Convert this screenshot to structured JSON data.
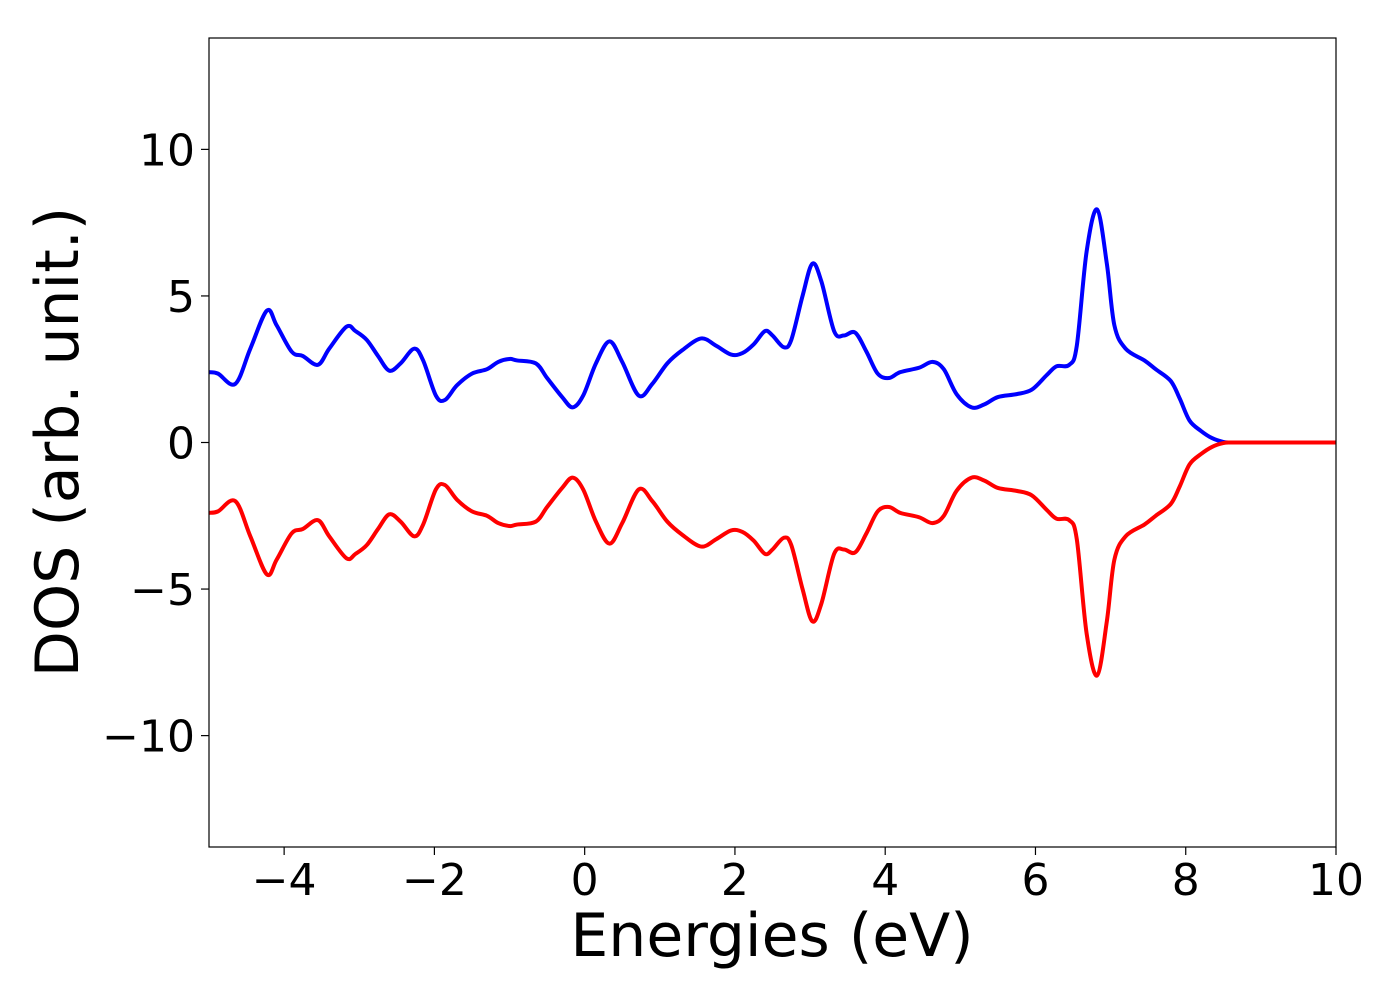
{
  "chart_data": {
    "type": "line",
    "title": "",
    "xlabel": "Energies (eV)",
    "ylabel": "DOS (arb. unit.)",
    "xlim": [
      -5,
      10
    ],
    "ylim": [
      -13.8,
      13.8
    ],
    "xticks": [
      -4,
      -2,
      0,
      2,
      4,
      6,
      8,
      10
    ],
    "xtick_labels": [
      "−4",
      "−2",
      "0",
      "2",
      "4",
      "6",
      "8",
      "10"
    ],
    "yticks": [
      -10,
      -5,
      0,
      5,
      10
    ],
    "ytick_labels": [
      "−10",
      "−5",
      "0",
      "5",
      "10"
    ],
    "grid": false,
    "legend": "none",
    "series": [
      {
        "color": "#0000ff",
        "x": [
          -5.0,
          -4.88,
          -4.65,
          -4.45,
          -4.23,
          -4.1,
          -3.9,
          -3.75,
          -3.55,
          -3.4,
          -3.17,
          -3.05,
          -2.9,
          -2.75,
          -2.6,
          -2.45,
          -2.27,
          -2.15,
          -1.98,
          -1.86,
          -1.7,
          -1.5,
          -1.3,
          -1.15,
          -1.0,
          -0.9,
          -0.65,
          -0.5,
          -0.3,
          -0.16,
          -0.02,
          0.15,
          0.33,
          0.5,
          0.72,
          0.9,
          1.1,
          1.3,
          1.55,
          1.75,
          1.95,
          2.1,
          2.25,
          2.4,
          2.5,
          2.65,
          2.75,
          2.9,
          3.03,
          3.15,
          3.32,
          3.45,
          3.6,
          3.75,
          3.9,
          4.05,
          4.2,
          4.45,
          4.63,
          4.78,
          4.95,
          5.15,
          5.32,
          5.5,
          5.75,
          5.95,
          6.15,
          6.28,
          6.45,
          6.55,
          6.68,
          6.82,
          6.95,
          7.05,
          7.2,
          7.45,
          7.6,
          7.8,
          7.92,
          8.05,
          8.2,
          8.35,
          8.5,
          8.6,
          8.8,
          10.0
        ],
        "y": [
          2.4,
          2.35,
          2.0,
          3.2,
          4.5,
          4.0,
          3.1,
          2.95,
          2.65,
          3.2,
          3.95,
          3.8,
          3.5,
          2.95,
          2.45,
          2.7,
          3.2,
          2.8,
          1.6,
          1.45,
          1.95,
          2.35,
          2.5,
          2.75,
          2.85,
          2.8,
          2.7,
          2.2,
          1.55,
          1.2,
          1.6,
          2.7,
          3.45,
          2.75,
          1.6,
          2.0,
          2.7,
          3.15,
          3.55,
          3.3,
          3.0,
          3.05,
          3.35,
          3.8,
          3.65,
          3.25,
          3.5,
          5.0,
          6.1,
          5.5,
          3.8,
          3.65,
          3.75,
          3.1,
          2.35,
          2.2,
          2.4,
          2.55,
          2.75,
          2.5,
          1.65,
          1.2,
          1.3,
          1.55,
          1.65,
          1.8,
          2.3,
          2.6,
          2.65,
          3.3,
          6.5,
          7.95,
          6.1,
          4.0,
          3.2,
          2.8,
          2.5,
          2.1,
          1.5,
          0.75,
          0.4,
          0.15,
          0.02,
          0.0,
          0.0,
          0.0
        ]
      },
      {
        "color": "#ff0000",
        "x": [
          -5.0,
          -4.88,
          -4.65,
          -4.45,
          -4.23,
          -4.1,
          -3.9,
          -3.75,
          -3.55,
          -3.4,
          -3.17,
          -3.05,
          -2.9,
          -2.75,
          -2.6,
          -2.45,
          -2.27,
          -2.15,
          -1.98,
          -1.86,
          -1.7,
          -1.5,
          -1.3,
          -1.15,
          -1.0,
          -0.9,
          -0.65,
          -0.5,
          -0.3,
          -0.16,
          -0.02,
          0.15,
          0.33,
          0.5,
          0.72,
          0.9,
          1.1,
          1.3,
          1.55,
          1.75,
          1.95,
          2.1,
          2.25,
          2.4,
          2.5,
          2.65,
          2.75,
          2.9,
          3.03,
          3.15,
          3.32,
          3.45,
          3.6,
          3.75,
          3.9,
          4.05,
          4.2,
          4.45,
          4.63,
          4.78,
          4.95,
          5.15,
          5.32,
          5.5,
          5.75,
          5.95,
          6.15,
          6.28,
          6.45,
          6.55,
          6.68,
          6.82,
          6.95,
          7.05,
          7.2,
          7.45,
          7.6,
          7.8,
          7.92,
          8.05,
          8.2,
          8.35,
          8.5,
          8.6,
          8.8,
          10.0
        ],
        "y": [
          -2.4,
          -2.35,
          -2.0,
          -3.2,
          -4.5,
          -4.0,
          -3.1,
          -2.95,
          -2.65,
          -3.2,
          -3.95,
          -3.8,
          -3.5,
          -2.95,
          -2.45,
          -2.7,
          -3.2,
          -2.8,
          -1.6,
          -1.45,
          -1.95,
          -2.35,
          -2.5,
          -2.75,
          -2.85,
          -2.8,
          -2.7,
          -2.2,
          -1.55,
          -1.2,
          -1.6,
          -2.7,
          -3.45,
          -2.75,
          -1.6,
          -2.0,
          -2.7,
          -3.15,
          -3.55,
          -3.3,
          -3.0,
          -3.05,
          -3.35,
          -3.8,
          -3.65,
          -3.25,
          -3.5,
          -5.0,
          -6.1,
          -5.5,
          -3.8,
          -3.65,
          -3.75,
          -3.1,
          -2.35,
          -2.2,
          -2.4,
          -2.55,
          -2.75,
          -2.5,
          -1.65,
          -1.2,
          -1.3,
          -1.55,
          -1.65,
          -1.8,
          -2.3,
          -2.6,
          -2.65,
          -3.3,
          -6.5,
          -7.95,
          -6.1,
          -4.0,
          -3.2,
          -2.8,
          -2.5,
          -2.1,
          -1.5,
          -0.75,
          -0.4,
          -0.15,
          -0.02,
          0.0,
          0.0,
          0.0
        ]
      }
    ]
  }
}
